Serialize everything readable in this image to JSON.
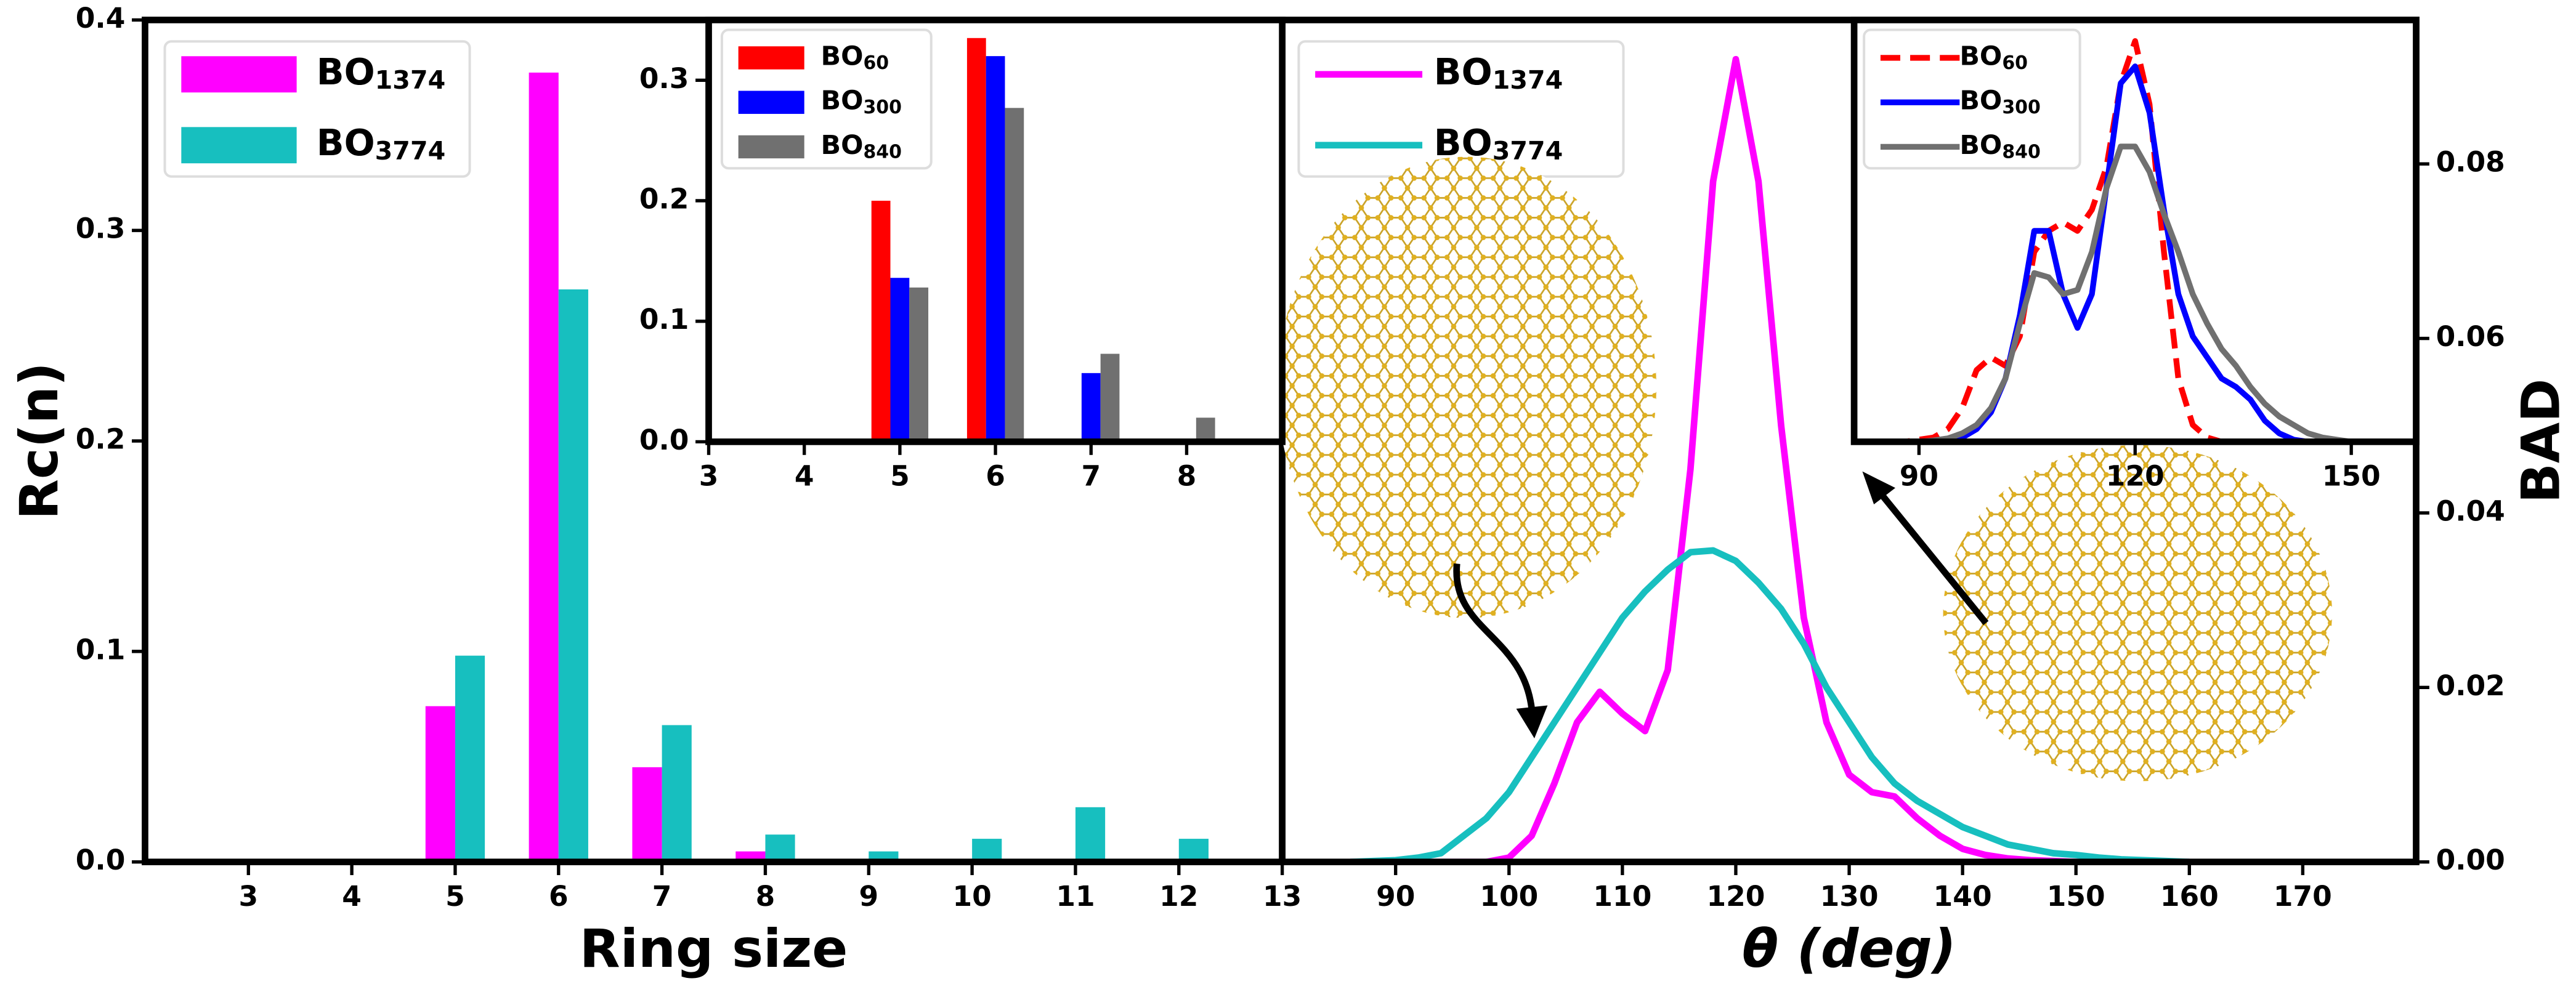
{
  "chart_data": [
    {
      "type": "bar",
      "xlabel": "Ring size",
      "ylabel": "Rc(n)",
      "legend": "upper left",
      "x": [
        3,
        4,
        5,
        6,
        7,
        8,
        9,
        10,
        11,
        12
      ],
      "series": [
        {
          "name": "BO1374",
          "color": "#ff00ff",
          "values": [
            0,
            0,
            0.074,
            0.375,
            0.045,
            0.005,
            0,
            0,
            0,
            0
          ]
        },
        {
          "name": "BO3774",
          "color": "#17bfbf",
          "values": [
            0,
            0,
            0.098,
            0.272,
            0.065,
            0.013,
            0.005,
            0.011,
            0.026,
            0.011
          ]
        }
      ],
      "xlim": [
        2,
        13
      ],
      "xticks": [
        3,
        4,
        5,
        6,
        7,
        8,
        9,
        10,
        11,
        12,
        13
      ],
      "ylim": [
        0,
        0.4
      ],
      "yticks": [
        {
          "value": 0,
          "label": "0.0"
        },
        {
          "value": 0.1,
          "label": "0.1"
        },
        {
          "value": 0.2,
          "label": "0.2"
        },
        {
          "value": 0.3,
          "label": "0.3"
        },
        {
          "value": 0.4,
          "label": "0.4"
        }
      ]
    },
    {
      "type": "bar",
      "legend": "upper left",
      "x": [
        3,
        4,
        5,
        6,
        7,
        8
      ],
      "series": [
        {
          "name": "BO60",
          "color": "#ff0000",
          "values": [
            0,
            0,
            0.2,
            0.335,
            0,
            0
          ]
        },
        {
          "name": "BO300",
          "color": "#0000ff",
          "values": [
            0,
            0,
            0.136,
            0.32,
            0.057,
            0
          ]
        },
        {
          "name": "BO840",
          "color": "#707070",
          "values": [
            0,
            0.002,
            0.128,
            0.277,
            0.073,
            0.02
          ]
        }
      ],
      "xlim": [
        3,
        9
      ],
      "xticks": [
        3,
        4,
        5,
        6,
        7,
        8
      ],
      "ylim": [
        0,
        0.35
      ],
      "yticks": [
        {
          "value": 0,
          "label": "0.0"
        },
        {
          "value": 0.1,
          "label": "0.1"
        },
        {
          "value": 0.2,
          "label": "0.2"
        },
        {
          "value": 0.3,
          "label": "0.3"
        }
      ]
    },
    {
      "type": "line",
      "xlabel": "θ (deg)",
      "ylabel": "BAD",
      "legend": "upper left",
      "y_axis_position": "right",
      "x": [
        86,
        88,
        90,
        92,
        94,
        96,
        98,
        100,
        102,
        104,
        106,
        108,
        110,
        112,
        114,
        116,
        118,
        120,
        122,
        124,
        126,
        128,
        130,
        132,
        134,
        136,
        138,
        140,
        142,
        144,
        146,
        148,
        150,
        152,
        154,
        156,
        158,
        160
      ],
      "series": [
        {
          "name": "BO1374",
          "color": "#ff00ff",
          "values": [
            0,
            0,
            0,
            0,
            0,
            0,
            0,
            0.0005,
            0.003,
            0.009,
            0.016,
            0.0195,
            0.017,
            0.015,
            0.022,
            0.045,
            0.078,
            0.092,
            0.078,
            0.05,
            0.028,
            0.016,
            0.01,
            0.008,
            0.0075,
            0.005,
            0.003,
            0.0015,
            0.0008,
            0.0004,
            0.0002,
            0.0001,
            0,
            0,
            0,
            0,
            0,
            0
          ]
        },
        {
          "name": "BO3774",
          "color": "#17bfbf",
          "values": [
            0,
            0.0001,
            0.0002,
            0.0005,
            0.001,
            0.003,
            0.005,
            0.008,
            0.012,
            0.016,
            0.02,
            0.024,
            0.028,
            0.031,
            0.0335,
            0.0355,
            0.0357,
            0.0345,
            0.032,
            0.029,
            0.025,
            0.02,
            0.016,
            0.012,
            0.009,
            0.007,
            0.0055,
            0.004,
            0.003,
            0.002,
            0.0015,
            0.001,
            0.0008,
            0.0005,
            0.0003,
            0.0002,
            0.0001,
            0
          ]
        }
      ],
      "xlim": [
        80,
        180
      ],
      "xticks": [
        90,
        100,
        110,
        120,
        130,
        140,
        150,
        160,
        170
      ],
      "ylim": [
        0,
        0.0965
      ],
      "yticks": [
        {
          "value": 0,
          "label": "0.00"
        },
        {
          "value": 0.02,
          "label": "0.02"
        },
        {
          "value": 0.04,
          "label": "0.04"
        },
        {
          "value": 0.06,
          "label": "0.06"
        },
        {
          "value": 0.08,
          "label": "0.08"
        }
      ]
    },
    {
      "type": "line",
      "legend": "upper left",
      "x": [
        86,
        88,
        90,
        92,
        94,
        96,
        98,
        100,
        102,
        104,
        106,
        108,
        110,
        112,
        114,
        116,
        118,
        120,
        122,
        124,
        126,
        128,
        130,
        132,
        134,
        136,
        138,
        140,
        142,
        144,
        146,
        148,
        150
      ],
      "series": [
        {
          "name": "BO60",
          "color": "#ff0000",
          "linestyle": "dashed",
          "values": [
            0,
            0,
            0.0005,
            0.001,
            0.003,
            0.008,
            0.017,
            0.02,
            0.018,
            0.025,
            0.045,
            0.05,
            0.052,
            0.05,
            0.055,
            0.065,
            0.085,
            0.095,
            0.08,
            0.045,
            0.015,
            0.004,
            0.001,
            0,
            0,
            0,
            0,
            0,
            0,
            0,
            0,
            0,
            0
          ]
        },
        {
          "name": "BO300",
          "color": "#0000ff",
          "linestyle": "solid",
          "values": [
            0,
            0,
            0,
            0,
            0.0005,
            0.001,
            0.003,
            0.007,
            0.015,
            0.03,
            0.05,
            0.05,
            0.035,
            0.027,
            0.035,
            0.06,
            0.085,
            0.089,
            0.078,
            0.055,
            0.035,
            0.025,
            0.02,
            0.015,
            0.013,
            0.01,
            0.005,
            0.002,
            0.0005,
            0,
            0,
            0,
            0
          ]
        },
        {
          "name": "BO840",
          "color": "#707070",
          "linestyle": "solid",
          "values": [
            0,
            0,
            0,
            0.0003,
            0.0008,
            0.002,
            0.004,
            0.008,
            0.015,
            0.028,
            0.04,
            0.039,
            0.035,
            0.036,
            0.045,
            0.06,
            0.07,
            0.07,
            0.064,
            0.054,
            0.045,
            0.035,
            0.028,
            0.022,
            0.018,
            0.013,
            0.009,
            0.006,
            0.004,
            0.002,
            0.001,
            0.0005,
            0
          ]
        }
      ],
      "xlim": [
        81,
        159
      ],
      "xticks": [
        90,
        120,
        150
      ],
      "ylim": [
        0,
        0.1
      ]
    }
  ]
}
